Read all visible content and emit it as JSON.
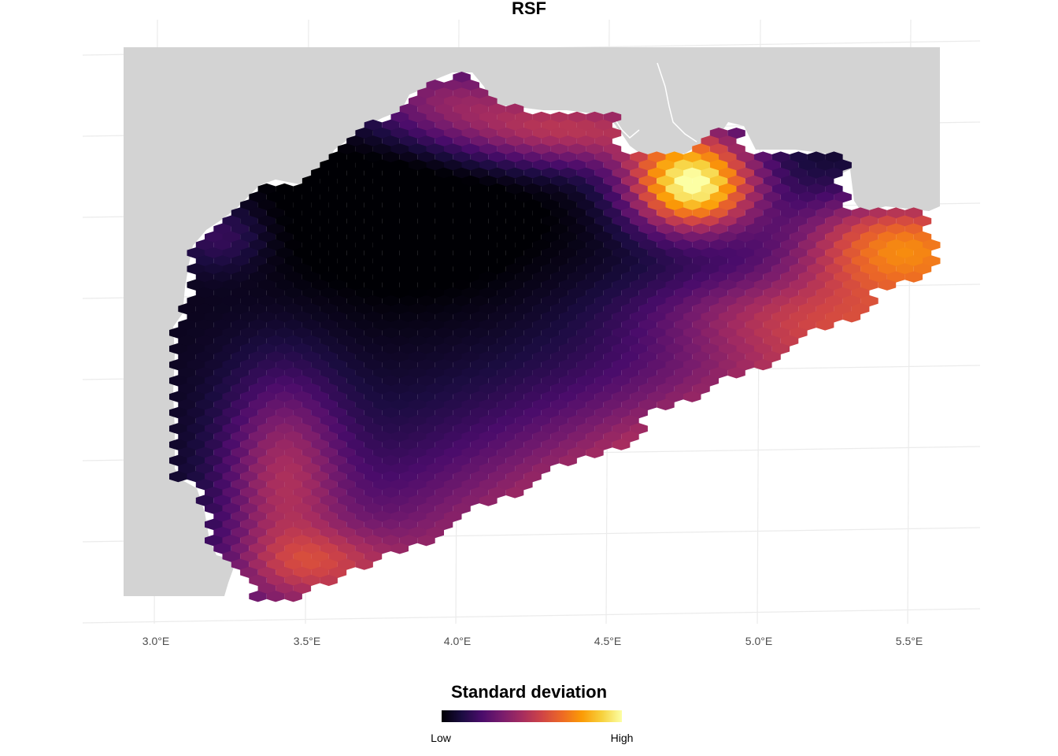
{
  "title": "RSF",
  "x_ticks": [
    "3.0°E",
    "3.5°E",
    "4.0°E",
    "4.5°E",
    "5.0°E",
    "5.5°E"
  ],
  "legend": {
    "title": "Standard deviation",
    "low_label": "Low",
    "high_label": "High",
    "palette": [
      "#000004",
      "#1b0c41",
      "#4a0c6b",
      "#781c6d",
      "#a52c60",
      "#cf4446",
      "#ed6925",
      "#fb9b06",
      "#f7d13d",
      "#fcffa4"
    ]
  },
  "colors": {
    "land": "#d3d3d3",
    "graticule": "#ebebeb",
    "background": "#ffffff"
  }
}
